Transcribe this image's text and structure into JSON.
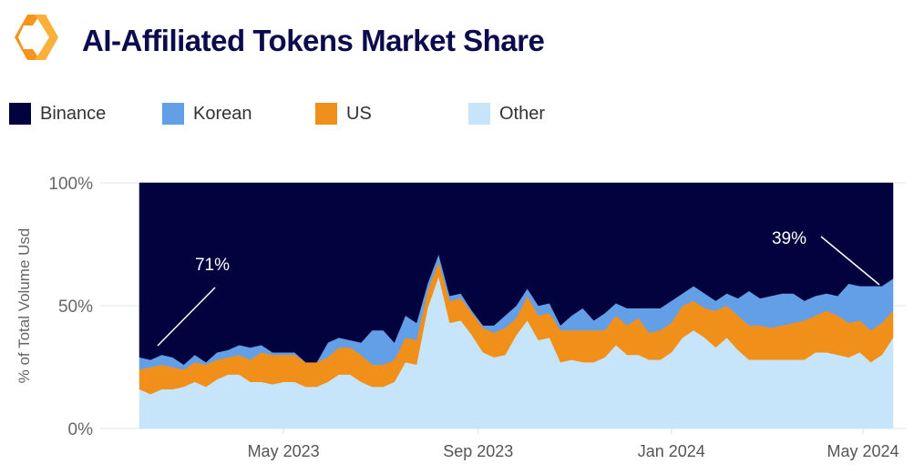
{
  "header": {
    "title": "AI-Affiliated Tokens Market Share",
    "logo": "orange-hexagon-logo"
  },
  "chart_data": {
    "type": "area",
    "stacked": true,
    "normalized": true,
    "ylabel": "% of Total Volume Usd",
    "ylim": [
      0,
      100
    ],
    "yticks": [
      "0%",
      "50%",
      "100%"
    ],
    "yticks_values": [
      0,
      50,
      100
    ],
    "xticks": [
      {
        "label": "May 2023",
        "date": "2023-05-01"
      },
      {
        "label": "Sep 2023",
        "date": "2023-09-01"
      },
      {
        "label": "Jan 2024",
        "date": "2024-01-01"
      },
      {
        "label": "May 2024",
        "date": "2024-05-01"
      }
    ],
    "grid": "horizontal",
    "legend_placement": "top",
    "x": [
      "2023-01-30",
      "2023-02-06",
      "2023-02-13",
      "2023-02-20",
      "2023-02-27",
      "2023-03-06",
      "2023-03-13",
      "2023-03-20",
      "2023-03-27",
      "2023-04-03",
      "2023-04-10",
      "2023-04-17",
      "2023-04-24",
      "2023-05-01",
      "2023-05-08",
      "2023-05-15",
      "2023-05-22",
      "2023-05-29",
      "2023-06-05",
      "2023-06-12",
      "2023-06-19",
      "2023-06-26",
      "2023-07-03",
      "2023-07-10",
      "2023-07-17",
      "2023-07-24",
      "2023-07-31",
      "2023-08-07",
      "2023-08-14",
      "2023-08-21",
      "2023-08-28",
      "2023-09-04",
      "2023-09-11",
      "2023-09-18",
      "2023-09-25",
      "2023-10-02",
      "2023-10-09",
      "2023-10-16",
      "2023-10-23",
      "2023-10-30",
      "2023-11-06",
      "2023-11-13",
      "2023-11-20",
      "2023-11-27",
      "2023-12-04",
      "2023-12-11",
      "2023-12-18",
      "2023-12-25",
      "2024-01-01",
      "2024-01-08",
      "2024-01-15",
      "2024-01-22",
      "2024-01-29",
      "2024-02-05",
      "2024-02-12",
      "2024-02-19",
      "2024-02-26",
      "2024-03-04",
      "2024-03-11",
      "2024-03-18",
      "2024-03-25",
      "2024-04-01",
      "2024-04-08",
      "2024-04-15",
      "2024-04-22",
      "2024-04-29",
      "2024-05-06",
      "2024-05-13",
      "2024-05-20"
    ],
    "series": [
      {
        "name": "Other",
        "color": "#c7e5fa",
        "values": [
          16,
          14,
          16,
          16,
          17,
          19,
          17,
          20,
          22,
          22,
          19,
          19,
          18,
          19,
          19,
          17,
          17,
          19,
          22,
          22,
          19,
          17,
          17,
          19,
          27,
          26,
          49,
          62,
          43,
          44,
          38,
          31,
          29,
          30,
          38,
          44,
          36,
          37,
          27,
          28,
          27,
          27,
          29,
          34,
          30,
          30,
          28,
          28,
          31,
          37,
          40,
          37,
          33,
          37,
          32,
          28,
          28,
          28,
          28,
          28,
          28,
          31,
          31,
          30,
          29,
          31,
          27,
          30,
          37
        ]
      },
      {
        "name": "US",
        "color": "#f0901b",
        "values": [
          8,
          11,
          10,
          9,
          7,
          8,
          9,
          8,
          7,
          8,
          9,
          12,
          12,
          11,
          11,
          10,
          10,
          10,
          11,
          11,
          11,
          9,
          9,
          9,
          10,
          10,
          7,
          6,
          9,
          9,
          9,
          10,
          10,
          11,
          7,
          10,
          10,
          10,
          13,
          12,
          13,
          13,
          11,
          12,
          12,
          15,
          11,
          12,
          12,
          13,
          12,
          12,
          15,
          13,
          14,
          14,
          14,
          13,
          14,
          15,
          16,
          15,
          17,
          16,
          14,
          13,
          13,
          13,
          11
        ]
      },
      {
        "name": "Korean",
        "color": "#629fe6",
        "values": [
          5,
          3,
          4,
          4,
          2,
          3,
          1,
          3,
          3,
          4,
          5,
          3,
          1,
          1,
          1,
          0,
          0,
          6,
          4,
          3,
          5,
          14,
          14,
          7,
          9,
          7,
          3,
          3,
          2,
          2,
          1,
          1,
          3,
          5,
          5,
          3,
          4,
          4,
          2,
          6,
          9,
          4,
          7,
          5,
          7,
          4,
          10,
          9,
          9,
          5,
          6,
          6,
          4,
          5,
          7,
          14,
          11,
          13,
          13,
          12,
          8,
          8,
          7,
          8,
          16,
          14,
          18,
          15,
          13
        ]
      },
      {
        "name": "Binance",
        "color": "#02023f",
        "values": [
          71,
          72,
          70,
          71,
          74,
          70,
          73,
          69,
          68,
          66,
          67,
          66,
          69,
          69,
          69,
          73,
          73,
          65,
          63,
          64,
          65,
          60,
          60,
          65,
          54,
          57,
          41,
          29,
          46,
          45,
          52,
          58,
          58,
          54,
          50,
          43,
          50,
          49,
          58,
          54,
          51,
          56,
          53,
          49,
          51,
          51,
          51,
          51,
          48,
          45,
          42,
          45,
          48,
          45,
          47,
          44,
          47,
          46,
          45,
          45,
          48,
          46,
          45,
          46,
          41,
          42,
          42,
          42,
          39
        ]
      }
    ],
    "legend": [
      {
        "name": "Binance",
        "color": "#02023f"
      },
      {
        "name": "Korean",
        "color": "#629fe6"
      },
      {
        "name": "US",
        "color": "#f0901b"
      },
      {
        "name": "Other",
        "color": "#c7e5fa"
      }
    ],
    "annotations": [
      {
        "text": "71%",
        "series": "Binance",
        "date": "2023-01-30"
      },
      {
        "text": "39%",
        "series": "Binance",
        "date": "2024-05-20"
      }
    ]
  }
}
